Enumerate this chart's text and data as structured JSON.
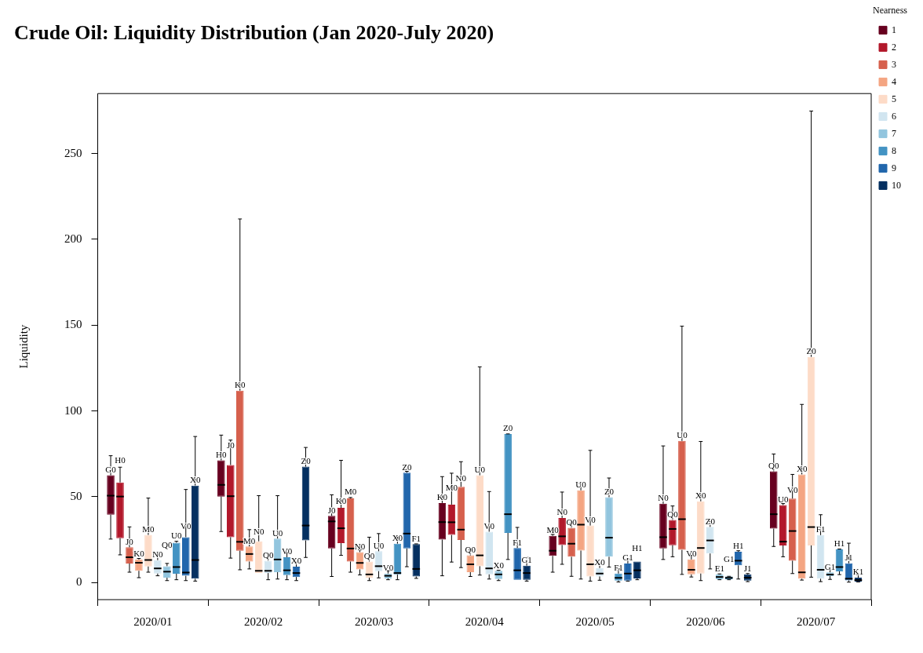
{
  "chart_data": {
    "type": "box",
    "title": "Crude Oil: Liquidity Distribution (Jan 2020-July 2020)",
    "ylabel": "Liquidity",
    "legend_title": "Nearness",
    "legend": "right",
    "categories": [
      "2020/01",
      "2020/02",
      "2020/03",
      "2020/04",
      "2020/05",
      "2020/06",
      "2020/07"
    ],
    "ylim": [
      -10,
      285
    ],
    "yticks": [
      0,
      50,
      100,
      150,
      200,
      250
    ],
    "series": [
      {
        "name": "1",
        "color": "#67001f",
        "value_labels": [
          "G0",
          "H0",
          "J0",
          "K0",
          "M0",
          "N0",
          "Q0"
        ],
        "boxes": [
          {
            "low": 25.3,
            "q1": 39.5,
            "median": 50.6,
            "q3": 62.5,
            "high": 73.9
          },
          {
            "low": 29.7,
            "q1": 50.1,
            "median": 56.9,
            "q3": 71.2,
            "high": 85.9
          },
          {
            "low": 3.5,
            "q1": 19.8,
            "median": 35.6,
            "q3": 38.8,
            "high": 51.1
          },
          {
            "low": 3.9,
            "q1": 25.0,
            "median": 35.2,
            "q3": 46.3,
            "high": 61.7
          },
          {
            "low": 6.0,
            "q1": 15.5,
            "median": 18.5,
            "q3": 27.2,
            "high": 28.0
          },
          {
            "low": 13.4,
            "q1": 19.8,
            "median": 26.4,
            "q3": 45.9,
            "high": 79.6
          },
          {
            "low": 21.0,
            "q1": 31.4,
            "median": 39.8,
            "q3": 64.8,
            "high": 74.9
          }
        ]
      },
      {
        "name": "2",
        "color": "#b2182b",
        "value_labels": [
          "H0",
          "J0",
          "K0",
          "M0",
          "N0",
          "Q0",
          "U0"
        ],
        "boxes": [
          {
            "low": 16.1,
            "q1": 25.8,
            "median": 50.1,
            "q3": 58.3,
            "high": 67.2
          },
          {
            "low": 14.2,
            "q1": 26.4,
            "median": 50.3,
            "q3": 68.5,
            "high": 83.0
          },
          {
            "low": 15.8,
            "q1": 22.9,
            "median": 31.6,
            "q3": 43.5,
            "high": 71.2
          },
          {
            "low": 11.9,
            "q1": 27.7,
            "median": 35.1,
            "q3": 45.4,
            "high": 63.7
          },
          {
            "low": 10.6,
            "q1": 21.8,
            "median": 26.9,
            "q3": 37.6,
            "high": 52.7
          },
          {
            "low": 15.0,
            "q1": 21.7,
            "median": 31.2,
            "q3": 36.4,
            "high": 44.6
          },
          {
            "low": 15.0,
            "q1": 21.6,
            "median": 23.8,
            "q3": 45.1,
            "high": 46.0
          }
        ]
      },
      {
        "name": "3",
        "color": "#d6604d",
        "value_labels": [
          "J0",
          "K0",
          "M0",
          "N0",
          "Q0",
          "U0",
          "V0"
        ],
        "boxes": [
          {
            "low": 6.0,
            "q1": 11.1,
            "median": 14.7,
            "q3": 20.5,
            "high": 32.4
          },
          {
            "low": 7.4,
            "q1": 18.5,
            "median": 23.7,
            "q3": 111.8,
            "high": 211.9
          },
          {
            "low": 6.0,
            "q1": 12.2,
            "median": 19.8,
            "q3": 49.0,
            "high": 49.5
          },
          {
            "low": 8.7,
            "q1": 24.8,
            "median": 30.8,
            "q3": 55.8,
            "high": 70.4
          },
          {
            "low": 3.6,
            "q1": 15.0,
            "median": 22.6,
            "q3": 31.9,
            "high": 34.5
          },
          {
            "low": 4.7,
            "q1": 19.0,
            "median": 36.9,
            "q3": 82.5,
            "high": 149.4
          },
          {
            "low": 5.2,
            "q1": 12.7,
            "median": 30.0,
            "q3": 48.9,
            "high": 63.0
          }
        ]
      },
      {
        "name": "4",
        "color": "#f4a582",
        "value_labels": [
          "K0",
          "M0",
          "N0",
          "Q0",
          "U0",
          "V0",
          "X0"
        ],
        "boxes": [
          {
            "low": 2.8,
            "q1": 6.8,
            "median": 11.5,
            "q3": 13.4,
            "high": 14.0
          },
          {
            "low": 7.9,
            "q1": 12.2,
            "median": 16.6,
            "q3": 21.0,
            "high": 30.8
          },
          {
            "low": 4.4,
            "q1": 7.6,
            "median": 11.4,
            "q3": 17.7,
            "high": 19.0
          },
          {
            "low": 3.5,
            "q1": 6.0,
            "median": 10.6,
            "q3": 15.8,
            "high": 19.0
          },
          {
            "low": 2.0,
            "q1": 18.6,
            "median": 33.7,
            "q3": 53.7,
            "high": 57.7
          },
          {
            "low": 3.2,
            "q1": 4.7,
            "median": 7.4,
            "q3": 13.4,
            "high": 15.8
          },
          {
            "low": 1.4,
            "q1": 2.2,
            "median": 5.9,
            "q3": 63.0,
            "high": 103.8
          }
        ]
      },
      {
        "name": "5",
        "color": "#fddbc7",
        "value_labels": [
          "M0",
          "N0",
          "Q0",
          "U0",
          "V0",
          "X0",
          "Z0"
        ],
        "boxes": [
          {
            "low": 6.0,
            "q1": 9.3,
            "median": 13.1,
            "q3": 27.7,
            "high": 49.2
          },
          {
            "low": 5.5,
            "q1": 5.5,
            "median": 6.8,
            "q3": 24.0,
            "high": 50.6
          },
          {
            "low": 1.1,
            "q1": 2.8,
            "median": 4.7,
            "q3": 12.2,
            "high": 26.4
          },
          {
            "low": 4.3,
            "q1": 9.5,
            "median": 15.8,
            "q3": 62.5,
            "high": 125.7
          },
          {
            "low": 0.8,
            "q1": 3.5,
            "median": 10.6,
            "q3": 33.2,
            "high": 77.0
          },
          {
            "low": 1.1,
            "q1": 5.2,
            "median": 20.1,
            "q3": 47.3,
            "high": 82.2
          },
          {
            "low": 3.1,
            "q1": 21.6,
            "median": 32.3,
            "q3": 131.5,
            "high": 274.8
          }
        ]
      },
      {
        "name": "6",
        "color": "#d1e5f0",
        "value_labels": [
          "N0",
          "Q0",
          "U0",
          "V0",
          "X0",
          "Z0",
          "F1"
        ],
        "boxes": [
          {
            "low": 3.9,
            "q1": 5.2,
            "median": 8.2,
            "q3": 13.0,
            "high": 16.3
          },
          {
            "low": 1.6,
            "q1": 5.5,
            "median": 6.8,
            "q3": 12.7,
            "high": 16.9
          },
          {
            "low": 2.7,
            "q1": 6.6,
            "median": 9.5,
            "q3": 18.2,
            "high": 28.5
          },
          {
            "low": 2.0,
            "q1": 4.7,
            "median": 8.2,
            "q3": 29.6,
            "high": 53.0
          },
          {
            "low": 1.3,
            "q1": 3.5,
            "median": 5.2,
            "q3": 8.4,
            "high": 11.1
          },
          {
            "low": 7.9,
            "q1": 16.9,
            "median": 24.5,
            "q3": 32.4,
            "high": 35.6
          },
          {
            "low": 0.5,
            "q1": 2.2,
            "median": 7.4,
            "q3": 27.6,
            "high": 39.5
          }
        ]
      },
      {
        "name": "7",
        "color": "#92c5de",
        "value_labels": [
          "Q0",
          "U0",
          "V0",
          "X0",
          "Z0",
          "E1",
          "G1"
        ],
        "boxes": [
          {
            "low": 1.1,
            "q1": 2.8,
            "median": 6.3,
            "q3": 9.5,
            "high": 11.1
          },
          {
            "low": 2.0,
            "q1": 6.0,
            "median": 13.4,
            "q3": 25.6,
            "high": 50.6
          },
          {
            "low": 1.6,
            "q1": 2.4,
            "median": 3.9,
            "q3": 5.2,
            "high": 6.8
          },
          {
            "low": 1.1,
            "q1": 2.0,
            "median": 4.7,
            "q3": 6.8,
            "high": 7.1
          },
          {
            "low": 9.0,
            "q1": 15.0,
            "median": 26.1,
            "q3": 49.7,
            "high": 60.9
          },
          {
            "low": 1.6,
            "q1": 1.9,
            "median": 3.2,
            "q3": 4.7,
            "high": 5.0
          },
          {
            "low": 1.8,
            "q1": 3.7,
            "median": 4.6,
            "q3": 5.9,
            "high": 7.4
          }
        ]
      },
      {
        "name": "8",
        "color": "#4393c3",
        "value_labels": [
          "U0",
          "V0",
          "X0",
          "Z0",
          "F1",
          "G1",
          "H1"
        ],
        "boxes": [
          {
            "low": 1.6,
            "q1": 5.1,
            "median": 9.0,
            "q3": 23.2,
            "high": 24.0
          },
          {
            "low": 1.6,
            "q1": 4.3,
            "median": 7.1,
            "q3": 14.7,
            "high": 17.4
          },
          {
            "low": 1.6,
            "q1": 4.7,
            "median": 5.5,
            "q3": 22.6,
            "high": 26.4
          },
          {
            "low": 13.4,
            "q1": 28.9,
            "median": 39.8,
            "q3": 86.5,
            "high": 86.6
          },
          {
            "low": 0.3,
            "q1": 1.1,
            "median": 2.7,
            "q3": 5.2,
            "high": 7.9
          },
          {
            "low": 1.6,
            "q1": 1.9,
            "median": 2.7,
            "q3": 3.5,
            "high": 3.6
          },
          {
            "low": 4.6,
            "q1": 6.5,
            "median": 9.0,
            "q3": 19.3,
            "high": 19.5
          }
        ]
      },
      {
        "name": "9",
        "color": "#2166ac",
        "value_labels": [
          "V0",
          "X0",
          "Z0",
          "F1",
          "G1",
          "H1",
          "J1"
        ],
        "boxes": [
          {
            "low": 1.1,
            "q1": 3.9,
            "median": 5.8,
            "q3": 26.4,
            "high": 54.2
          },
          {
            "low": 1.1,
            "q1": 3.2,
            "median": 5.5,
            "q3": 9.2,
            "high": 11.9
          },
          {
            "low": 9.2,
            "q1": 19.8,
            "median": 28.5,
            "q3": 64.0,
            "high": 64.8
          },
          {
            "low": 1.6,
            "q1": 1.6,
            "median": 7.1,
            "q3": 20.1,
            "high": 32.1
          },
          {
            "low": 0.8,
            "q1": 1.1,
            "median": 5.2,
            "q3": 11.1,
            "high": 13.8
          },
          {
            "low": 2.0,
            "q1": 10.0,
            "median": 12.7,
            "q3": 17.9,
            "high": 18.5
          },
          {
            "low": 0.2,
            "q1": 1.2,
            "median": 2.2,
            "q3": 11.2,
            "high": 22.9
          }
        ]
      },
      {
        "name": "10",
        "color": "#053061",
        "value_labels": [
          "X0",
          "Z0",
          "F1",
          "G1",
          "H1",
          "J1",
          "K1"
        ],
        "boxes": [
          {
            "low": 0.8,
            "q1": 2.2,
            "median": 13.1,
            "q3": 56.5,
            "high": 85.1
          },
          {
            "low": 14.6,
            "q1": 24.5,
            "median": 33.2,
            "q3": 67.5,
            "high": 78.7
          },
          {
            "low": 2.4,
            "q1": 3.5,
            "median": 7.9,
            "q3": 22.4,
            "high": 22.5
          },
          {
            "low": 0.8,
            "q1": 1.6,
            "median": 5.5,
            "q3": 9.8,
            "high": 14.6
          },
          {
            "low": 1.6,
            "q1": 2.4,
            "median": 7.1,
            "q3": 12.2,
            "high": 12.2
          },
          {
            "low": 0.5,
            "q1": 1.1,
            "median": 2.8,
            "q3": 4.7,
            "high": 5.2
          },
          {
            "low": 0.3,
            "q1": 0.5,
            "median": 1.4,
            "q3": 2.8,
            "high": 4.6
          }
        ]
      }
    ]
  }
}
